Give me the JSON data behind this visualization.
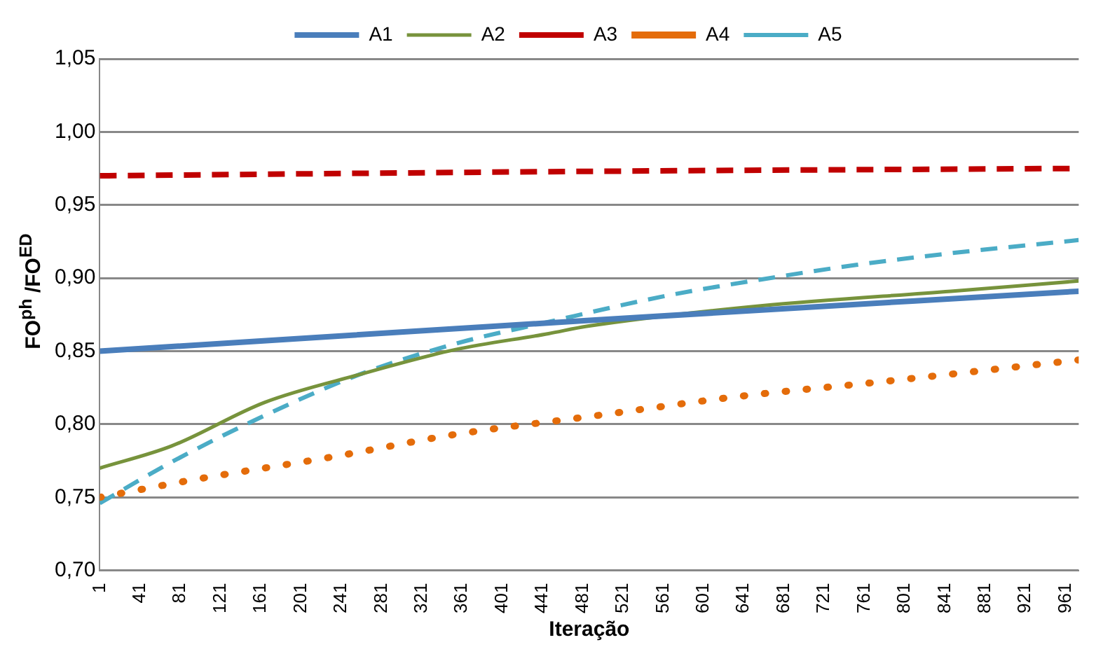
{
  "chart_data": {
    "type": "line",
    "xlabel": "Iteração",
    "ylabel": "FO$^{ph}$ /FO$^{ED}$",
    "xlim": [
      1,
      974
    ],
    "xticks": [
      1,
      41,
      81,
      121,
      161,
      201,
      241,
      281,
      321,
      361,
      401,
      441,
      481,
      521,
      561,
      601,
      641,
      681,
      721,
      761,
      801,
      841,
      881,
      921,
      961
    ],
    "ylim": [
      0.7,
      1.05
    ],
    "yticks": [
      {
        "value": 0.7,
        "label": "0,70"
      },
      {
        "value": 0.75,
        "label": "0,75"
      },
      {
        "value": 0.8,
        "label": "0,80"
      },
      {
        "value": 0.85,
        "label": "0,85"
      },
      {
        "value": 0.9,
        "label": "0,90"
      },
      {
        "value": 0.95,
        "label": "0,95"
      },
      {
        "value": 1.0,
        "label": "1,00"
      },
      {
        "value": 1.05,
        "label": "1,05"
      }
    ],
    "grid": "y",
    "legend": "top",
    "marker": "none",
    "series": [
      {
        "name": "A1",
        "color": "#4a7ebb",
        "line_style": "solid",
        "x": [
          1,
          485,
          974
        ],
        "values": [
          0.85,
          0.871,
          0.891
        ]
      },
      {
        "name": "A2",
        "color": "#77933c",
        "line_style": "solid",
        "x": [
          1,
          72,
          165,
          259,
          354,
          447,
          485,
          658,
          847,
          974
        ],
        "values": [
          0.77,
          0.785,
          0.815,
          0.834,
          0.851,
          0.862,
          0.867,
          0.881,
          0.891,
          0.898
        ]
      },
      {
        "name": "A3",
        "color": "#c00000",
        "line_style": "dashed",
        "x": [
          1,
          485,
          974
        ],
        "values": [
          0.97,
          0.973,
          0.975
        ]
      },
      {
        "name": "A4",
        "color": "#e46c0a",
        "line_style": "dotted",
        "x": [
          1,
          94,
          235,
          354,
          485,
          636,
          777,
          974
        ],
        "values": [
          0.75,
          0.762,
          0.778,
          0.793,
          0.805,
          0.819,
          0.829,
          0.844
        ]
      },
      {
        "name": "A5",
        "color": "#4bacc6",
        "line_style": "dashed",
        "x": [
          1,
          72,
          165,
          259,
          354,
          447,
          565,
          658,
          753,
          847,
          974
        ],
        "values": [
          0.746,
          0.774,
          0.806,
          0.834,
          0.855,
          0.87,
          0.888,
          0.899,
          0.909,
          0.917,
          0.926
        ]
      }
    ]
  }
}
